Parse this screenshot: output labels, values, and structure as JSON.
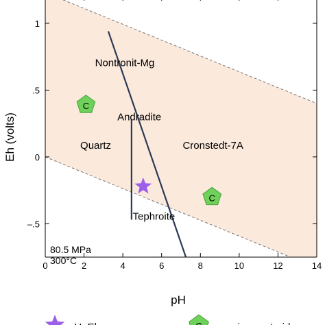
{
  "chart_data": {
    "type": "phase-diagram",
    "xlabel": "pH",
    "ylabel": "Eh (volts)",
    "xlim": [
      0,
      14
    ],
    "ylim": [
      -0.75,
      1.2
    ],
    "xticks": [
      0,
      2,
      4,
      6,
      8,
      10,
      12,
      14
    ],
    "yticks": [
      {
        "value": 1.0,
        "label": "1"
      },
      {
        "value": 0.5,
        "label": ".5"
      },
      {
        "value": 0.0,
        "label": "0"
      },
      {
        "value": -0.5,
        "label": "–.5"
      }
    ],
    "water_stability": {
      "upper": [
        [
          0,
          1.23
        ],
        [
          14,
          0.4
        ]
      ],
      "lower": [
        [
          0,
          0.0
        ],
        [
          14,
          -0.83
        ]
      ],
      "fill_color": "#fbe9dc",
      "edge_color": "#777777"
    },
    "boundaries": [
      {
        "points": [
          [
            3.25,
            0.94
          ],
          [
            7.25,
            -0.75
          ]
        ],
        "color": "#2b3a55"
      },
      {
        "points": [
          [
            4.45,
            0.28
          ],
          [
            4.45,
            -0.47
          ]
        ],
        "color": "#2b3a55"
      }
    ],
    "fields": [
      {
        "label": "Nontronit-Mg",
        "x": 4.1,
        "y": 0.68
      },
      {
        "label": "Andradite",
        "x": 4.85,
        "y": 0.275
      },
      {
        "label": "Quartz",
        "x": 2.6,
        "y": 0.06
      },
      {
        "label": "Cronstedt-7A",
        "x": 8.65,
        "y": 0.06
      },
      {
        "label": "Tephroite",
        "x": 5.6,
        "y": -0.47
      }
    ],
    "conditions": {
      "pressure": "80.5 MPa",
      "temperature": "300°C"
    },
    "points": [
      {
        "label": "pH, Eh",
        "marker": "star",
        "x": 5.05,
        "y": -0.22,
        "color": "#9b5fe8"
      }
    ],
    "centroids": [
      {
        "label": "species centroid",
        "marker": "pentagon",
        "text": "C",
        "x": 2.1,
        "y": 0.39,
        "color": "#6ed15a"
      },
      {
        "label": "species centroid",
        "marker": "pentagon",
        "text": "C",
        "x": 8.6,
        "y": -0.3,
        "color": "#6ed15a"
      }
    ],
    "legend": [
      {
        "marker": "star",
        "label": "pH, Eh",
        "color": "#9b5fe8"
      },
      {
        "marker": "pentagon",
        "text": "C",
        "label": "species centroid",
        "color": "#6ed15a"
      }
    ],
    "legend_placement": "bottom"
  }
}
